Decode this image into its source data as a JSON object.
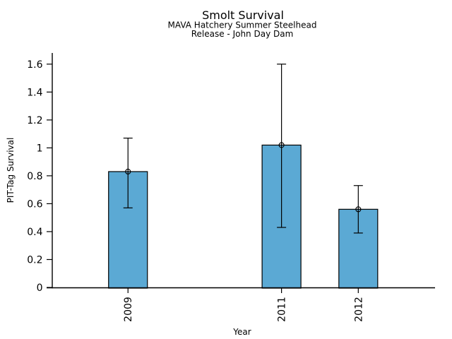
{
  "chart_data": {
    "type": "bar",
    "title": "Smolt Survival",
    "subtitle": [
      "MAVA Hatchery Summer Steelhead",
      "Release - John Day Dam"
    ],
    "xlabel": "Year",
    "ylabel": "PIT-Tag Survival",
    "categories": [
      "2009",
      "2011",
      "2012"
    ],
    "x_numeric": [
      2009,
      2011,
      2012
    ],
    "values": [
      0.83,
      1.02,
      0.56
    ],
    "error_low": [
      0.57,
      0.43,
      0.39
    ],
    "error_high": [
      1.07,
      1.6,
      0.73
    ],
    "yticks": [
      0,
      0.2,
      0.4,
      0.6,
      0.8,
      1,
      1.2,
      1.4,
      1.6
    ],
    "ylim": [
      0,
      1.68
    ],
    "xlim": [
      2007.94,
      2013.0
    ],
    "bar_width_years": 0.5,
    "grid": false,
    "legend": "none",
    "marker": "open-circle-plus",
    "error_caps": true,
    "colors": {
      "bar_fill": "#5BA9D4",
      "bar_edge": "#000000",
      "error": "#000000",
      "axis": "#000000",
      "text": "#000000",
      "background": "#FFFFFF"
    }
  }
}
